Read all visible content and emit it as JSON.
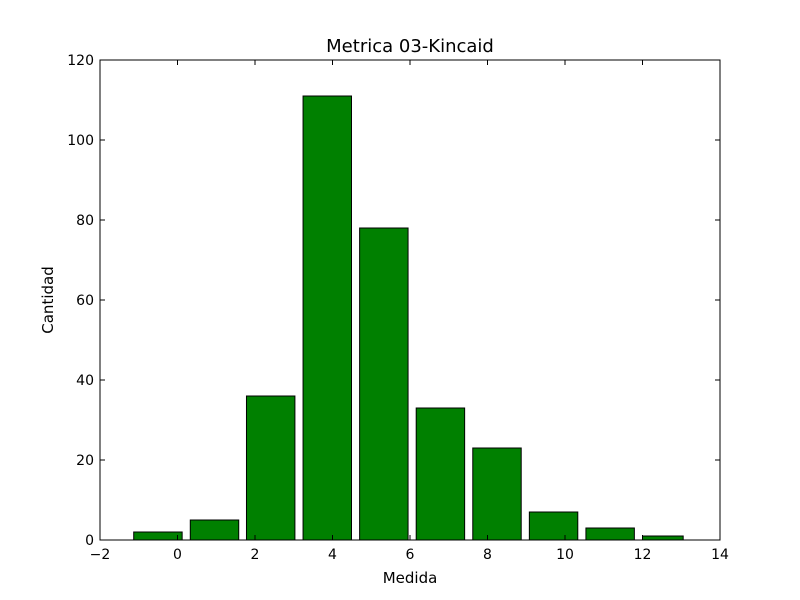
{
  "chart_data": {
    "type": "bar",
    "title": "Metrica 03-Kincaid",
    "xlabel": "Medida",
    "ylabel": "Cantidad",
    "xlim": [
      -2,
      14
    ],
    "ylim": [
      0,
      120
    ],
    "xticks": [
      -2,
      0,
      2,
      4,
      6,
      8,
      10,
      12,
      14
    ],
    "yticks": [
      0,
      20,
      40,
      60,
      80,
      100,
      120
    ],
    "bin_width": 1.45,
    "bar_color": "#008000",
    "edge_color": "#000000",
    "grid": false,
    "bars": [
      {
        "x_start": -1.13,
        "x_end": 0.12,
        "value": 2
      },
      {
        "x_start": 0.33,
        "x_end": 1.58,
        "value": 5
      },
      {
        "x_start": 1.78,
        "x_end": 3.03,
        "value": 36
      },
      {
        "x_start": 3.24,
        "x_end": 4.49,
        "value": 111
      },
      {
        "x_start": 4.7,
        "x_end": 5.95,
        "value": 78
      },
      {
        "x_start": 6.16,
        "x_end": 7.41,
        "value": 33
      },
      {
        "x_start": 7.62,
        "x_end": 8.87,
        "value": 23
      },
      {
        "x_start": 9.08,
        "x_end": 10.33,
        "value": 7
      },
      {
        "x_start": 10.54,
        "x_end": 11.79,
        "value": 3
      },
      {
        "x_start": 12.0,
        "x_end": 13.05,
        "value": 1
      }
    ]
  }
}
